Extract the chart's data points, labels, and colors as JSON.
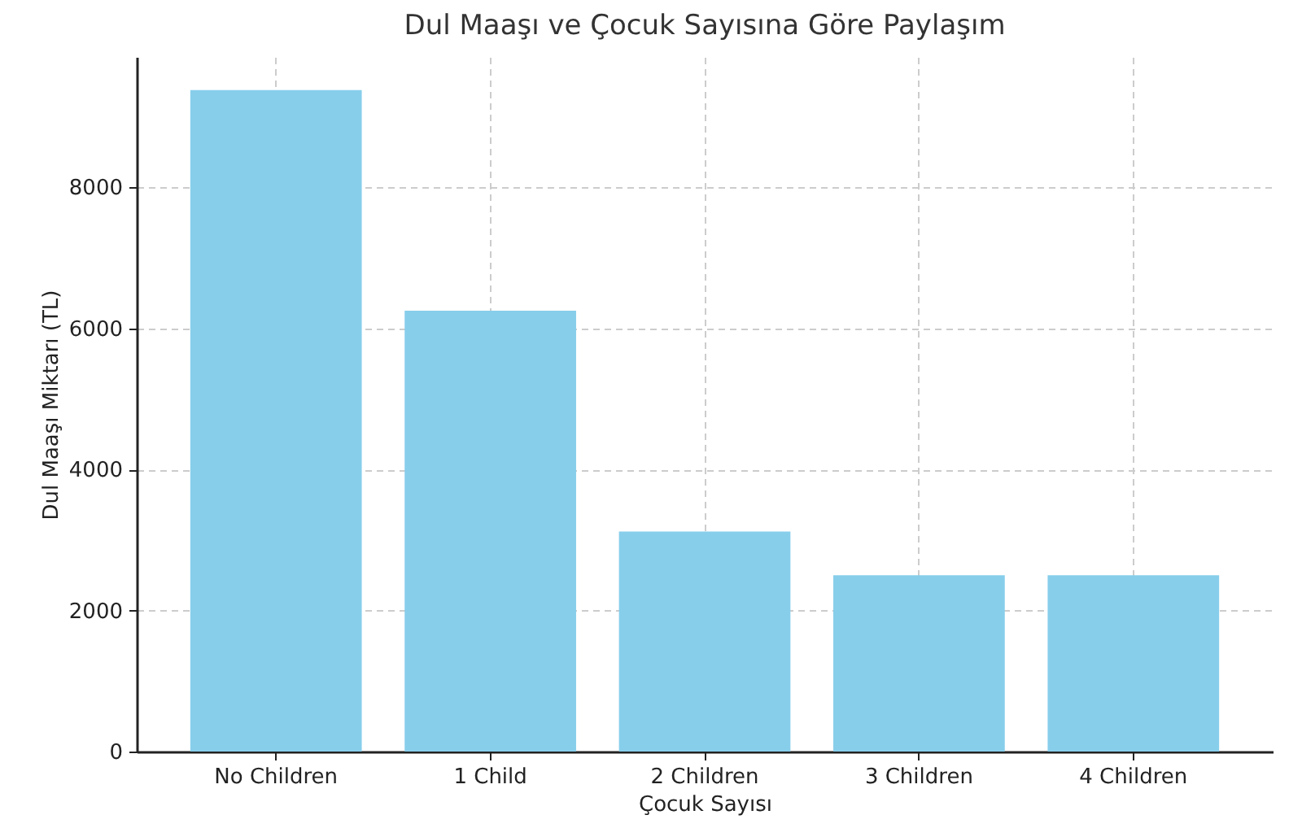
{
  "chart_data": {
    "type": "bar",
    "title": "Dul Maaşı ve Çocuk Sayısına Göre Paylaşım",
    "xlabel": "Çocuk Sayısı",
    "ylabel": "Dul Maaşı Miktarı (TL)",
    "categories": [
      "No Children",
      "1 Child",
      "2 Children",
      "3 Children",
      "4 Children"
    ],
    "values": [
      9380,
      6250,
      3120,
      2500,
      2500
    ],
    "color": "#87ceeb",
    "ylim": [
      0,
      9850
    ],
    "yticks": [
      0,
      2000,
      4000,
      6000,
      8000
    ],
    "grid": true
  }
}
